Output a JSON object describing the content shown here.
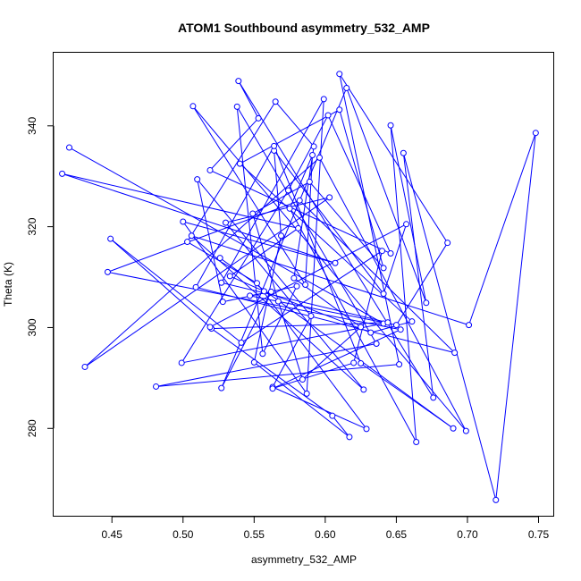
{
  "chart_data": {
    "type": "line",
    "title": "ATOM1 Southbound asymmetry_532_AMP",
    "xlabel": "asymmetry_532_AMP",
    "ylabel": "Theta (K)",
    "xlim": [
      0.409,
      0.761
    ],
    "ylim": [
      262.5,
      354.5
    ],
    "xticks": [
      0.45,
      0.5,
      0.55,
      0.6,
      0.65,
      0.7,
      0.75
    ],
    "yticks": [
      280,
      300,
      320,
      340
    ],
    "line_color": "#0000ff",
    "grid": false,
    "legend": "none",
    "series": [
      {
        "markers": "open-circle",
        "x": [
          0.42,
          0.641,
          0.499,
          0.574,
          0.602,
          0.646,
          0.519,
          0.553,
          0.539,
          0.676,
          0.655,
          0.72,
          0.748,
          0.701,
          0.506,
          0.627,
          0.53,
          0.603,
          0.431,
          0.596,
          0.699,
          0.507,
          0.586,
          0.591,
          0.575,
          0.664,
          0.646,
          0.671,
          0.615,
          0.527,
          0.562,
          0.547,
          0.65,
          0.686,
          0.61,
          0.652,
          0.481,
          0.636,
          0.538,
          0.556,
          0.58,
          0.528,
          0.51,
          0.59,
          0.563,
          0.629,
          0.552,
          0.503,
          0.565,
          0.592,
          0.578,
          0.625,
          0.584,
          0.567,
          0.549,
          0.589,
          0.641,
          0.61,
          0.54,
          0.661,
          0.632,
          0.557,
          0.533,
          0.581,
          0.415,
          0.607,
          0.5,
          0.587,
          0.599,
          0.527,
          0.644,
          0.52,
          0.605,
          0.617,
          0.55,
          0.569,
          0.564,
          0.641,
          0.657,
          0.519,
          0.449,
          0.541,
          0.64,
          0.62,
          0.563,
          0.653,
          0.447,
          0.582,
          0.691,
          0.509,
          0.564,
          0.625,
          0.69,
          0.526
        ],
        "y": [
          335.7,
          300.8,
          293.0,
          327.2,
          342.1,
          314.7,
          331.2,
          341.5,
          348.9,
          286.1,
          334.6,
          265.8,
          338.6,
          300.5,
          318.2,
          287.7,
          320.8,
          325.8,
          292.2,
          333.7,
          279.5,
          343.9,
          308.5,
          334.2,
          323.6,
          277.3,
          340.1,
          304.9,
          347.5,
          288.0,
          307.1,
          306.3,
          300.5,
          316.8,
          350.3,
          292.7,
          288.3,
          296.8,
          343.8,
          294.8,
          308.2,
          305.1,
          329.4,
          302.3,
          288.2,
          279.9,
          308.8,
          317.0,
          344.8,
          335.9,
          309.8,
          300.1,
          289.7,
          305.2,
          322.6,
          328.9,
          311.8,
          343.2,
          332.5,
          301.2,
          299.0,
          307.2,
          310.2,
          319.7,
          330.5,
          312.8,
          321.0,
          286.9,
          345.3,
          308.9,
          301.0,
          299.8,
          282.5,
          278.3,
          293.1,
          318.2,
          335.1,
          306.7,
          320.5,
          300.1,
          317.6,
          297.0,
          315.2,
          293.0,
          287.9,
          299.6,
          311.0,
          325.2,
          295.0,
          308.0,
          336.0,
          292.9,
          280.0,
          313.8
        ]
      }
    ]
  }
}
